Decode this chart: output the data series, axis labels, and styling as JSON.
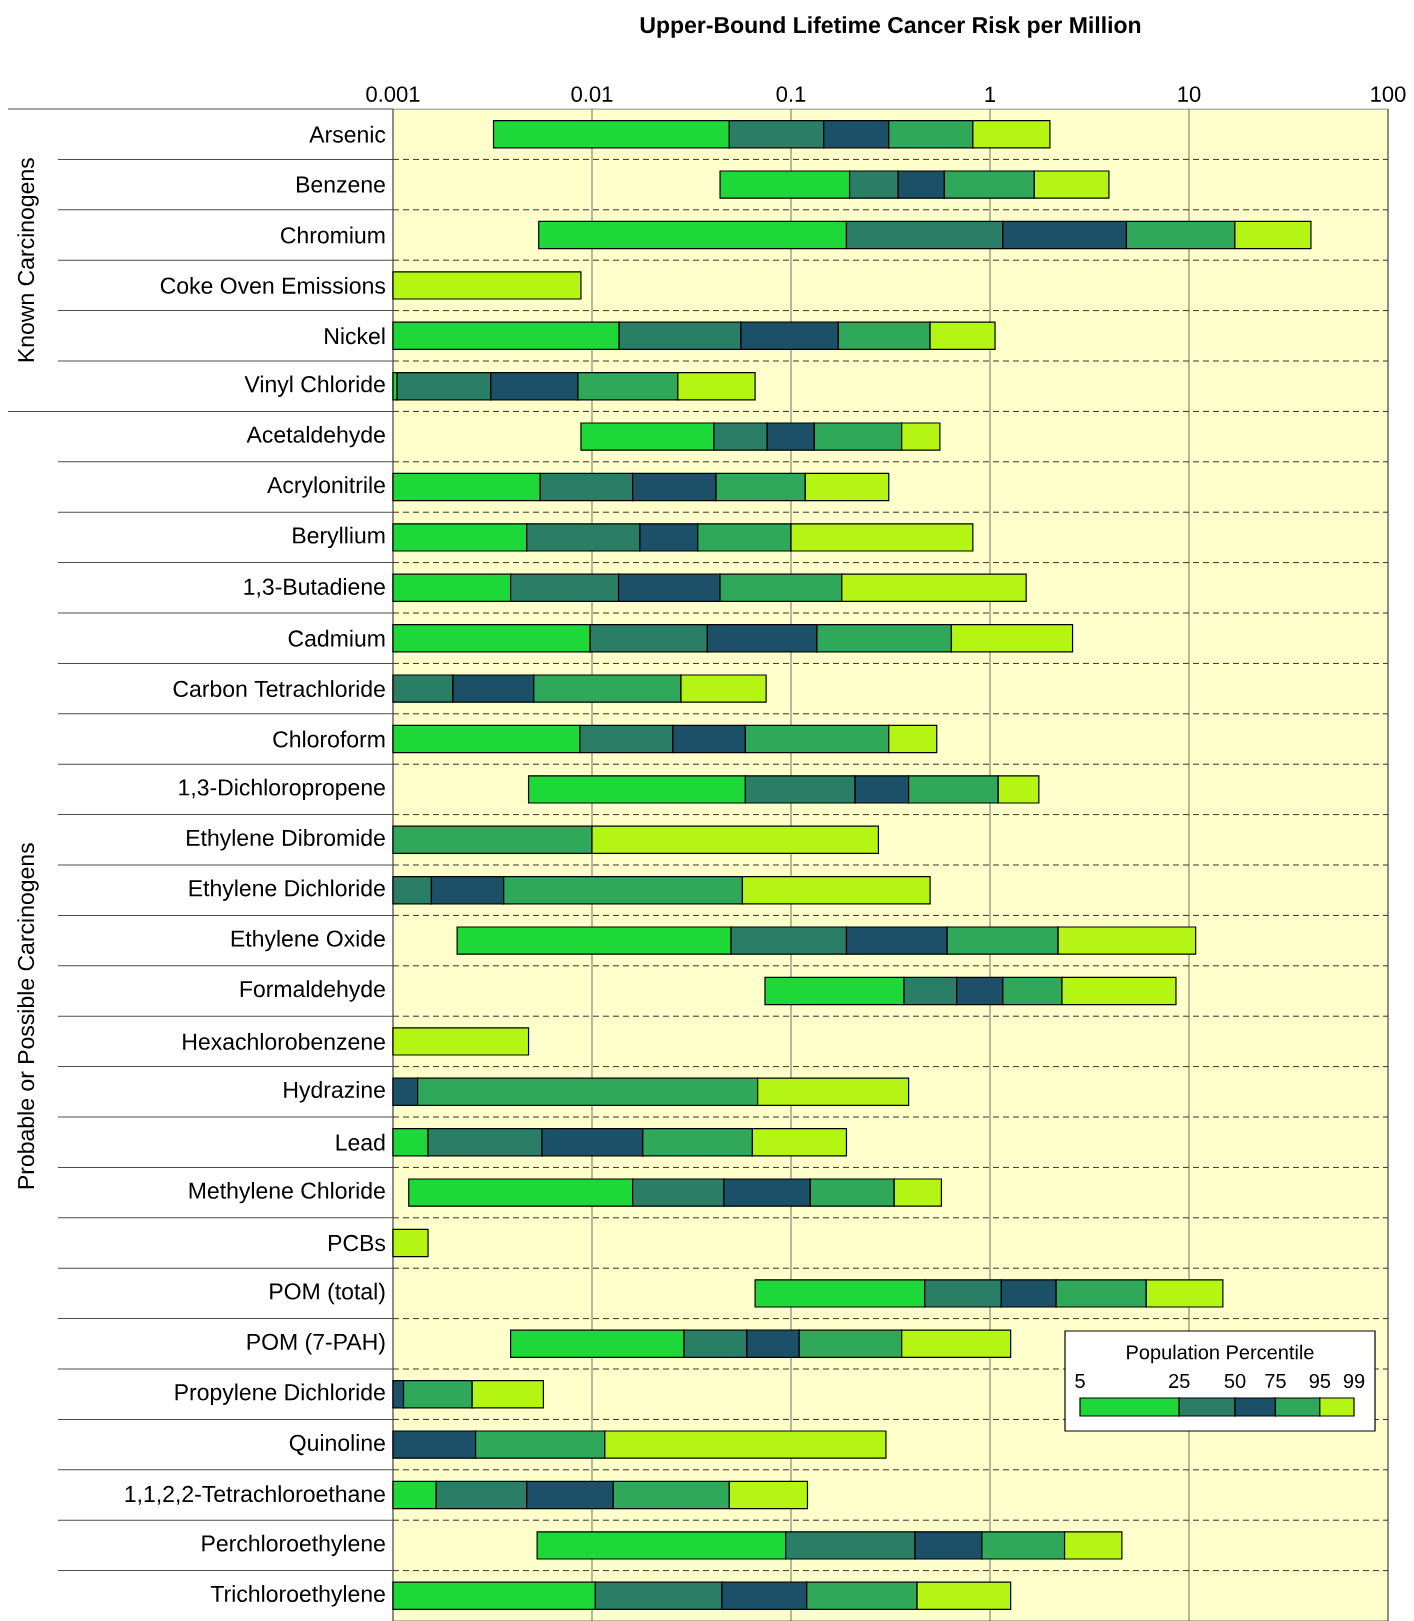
{
  "chart_data": {
    "type": "bar",
    "orientation": "horizontal",
    "log": "x",
    "xlabel": "Upper-Bound Lifetime Cancer Risk per Million",
    "legend_title": "Population Percentile",
    "annotations": [
      "Known Carcinogens",
      "Probable or Possible Carcinogens",
      "5",
      "25",
      "50",
      "75",
      "95",
      "99"
    ],
    "categories": [
      "Arsenic",
      "Benzene",
      "Chromium",
      "Coke Oven Emissions",
      "Nickel",
      "Vinyl Chloride",
      "Acetaldehyde",
      "Acrylonitrile",
      "Beryllium",
      "1,3-Butadiene",
      "Cadmium",
      "Carbon Tetrachloride",
      "Chloroform",
      "1,3-Dichloropropene",
      "Ethylene Dibromide",
      "Ethylene Dichloride",
      "Ethylene Oxide",
      "Formaldehyde",
      "Hexachlorobenzene",
      "Hydrazine",
      "Lead",
      "Methylene Chloride",
      "PCBs",
      "POM (total)",
      "POM (7-PAH)",
      "Propylene Dichloride",
      "Quinoline",
      "1,1,2,2-Tetrachloroethane",
      "Perchloroethylene",
      "Trichloroethylene"
    ],
    "series": [
      {
        "color": "#1ed83a",
        "base": [
          0.0032,
          0.044,
          0.0054,
          null,
          0.001,
          0.001,
          0.0088,
          0.001,
          0.001,
          0.001,
          0.001,
          null,
          0.001,
          0.0048,
          null,
          null,
          0.0021,
          0.074,
          null,
          null,
          0.001,
          0.0012,
          null,
          0.066,
          0.0039,
          null,
          null,
          0.001,
          0.0053,
          0.001
        ],
        "values": [
          0.0458,
          0.153,
          0.1846,
          null,
          0.0127,
          5e-05,
          0.0322,
          0.0045,
          0.0037,
          0.0029,
          0.0088,
          null,
          0.0077,
          0.0542,
          null,
          null,
          0.0479,
          0.296,
          null,
          null,
          0.0005,
          0.0148,
          null,
          0.404,
          0.0251,
          null,
          null,
          0.00065,
          0.0887,
          0.0094
        ]
      },
      {
        "color": "#2a7e66",
        "base": [
          0.049,
          0.197,
          0.19,
          null,
          0.0137,
          0.00105,
          0.041,
          0.0055,
          0.0047,
          0.0039,
          0.0098,
          0.001,
          0.0087,
          0.059,
          null,
          0.001,
          0.05,
          0.37,
          null,
          null,
          0.0015,
          0.016,
          null,
          0.47,
          0.029,
          null,
          null,
          0.00165,
          0.094,
          0.0104
        ],
        "values": [
          0.097,
          0.149,
          0.97,
          null,
          0.0423,
          0.00205,
          0.035,
          0.0105,
          0.0127,
          0.0097,
          0.0282,
          0.001,
          0.0168,
          0.151,
          null,
          0.00056,
          0.14,
          0.31,
          null,
          null,
          0.0041,
          0.03,
          null,
          0.67,
          0.031,
          null,
          null,
          0.00305,
          0.326,
          0.0346
        ]
      },
      {
        "color": "#1b5068",
        "base": [
          0.146,
          0.346,
          1.16,
          null,
          0.056,
          0.0031,
          0.076,
          0.016,
          0.0174,
          0.0136,
          0.038,
          0.002,
          0.0255,
          0.21,
          null,
          0.00156,
          0.19,
          0.68,
          null,
          0.001,
          0.0056,
          0.046,
          null,
          1.14,
          0.06,
          0.001,
          0.001,
          0.0047,
          0.42,
          0.045
        ],
        "values": [
          0.164,
          0.244,
          3.69,
          null,
          0.117,
          0.0054,
          0.055,
          0.026,
          0.0166,
          0.0304,
          0.097,
          0.0031,
          0.0335,
          0.18,
          null,
          0.00204,
          0.42,
          0.48,
          null,
          0.00033,
          0.0124,
          0.079,
          null,
          1.01,
          0.05,
          0.00013,
          0.0016,
          0.0081,
          0.49,
          0.075
        ]
      },
      {
        "color": "#2fa85a",
        "base": [
          0.31,
          0.59,
          4.85,
          null,
          0.173,
          0.0085,
          0.131,
          0.042,
          0.034,
          0.044,
          0.135,
          0.0051,
          0.059,
          0.39,
          0.001,
          0.0036,
          0.61,
          1.16,
          null,
          0.00133,
          0.018,
          0.125,
          null,
          2.15,
          0.11,
          0.00113,
          0.0026,
          0.0128,
          0.91,
          0.12
        ],
        "values": [
          0.51,
          1.08,
          12.15,
          null,
          0.327,
          0.0185,
          0.229,
          0.076,
          0.066,
          0.136,
          0.505,
          0.0229,
          0.251,
          0.71,
          0.009,
          0.0534,
          1.59,
          1.14,
          null,
          0.0667,
          0.046,
          0.205,
          null,
          3.95,
          0.25,
          0.00137,
          0.009,
          0.0362,
          1.46,
          0.31
        ]
      },
      {
        "color": "#b4f514",
        "base": [
          0.82,
          1.67,
          17,
          0.001,
          0.5,
          0.027,
          0.36,
          0.118,
          0.1,
          0.18,
          0.64,
          0.028,
          0.31,
          1.1,
          0.01,
          0.057,
          2.2,
          2.3,
          0.001,
          0.068,
          0.064,
          0.33,
          0.001,
          6.1,
          0.36,
          0.0025,
          0.0116,
          0.049,
          2.37,
          0.43
        ],
        "values": [
          1.18,
          2.29,
          24,
          0.0078,
          0.56,
          0.039,
          0.2,
          0.192,
          0.72,
          1.34,
          1.96,
          0.047,
          0.23,
          0.66,
          0.265,
          0.443,
          8.6,
          6.3,
          0.0038,
          0.322,
          0.126,
          0.24,
          0.0005,
          8.7,
          0.91,
          0.0032,
          0.2884,
          0.072,
          2.23,
          0.84
        ]
      }
    ],
    "xlim": [
      0.001,
      100
    ],
    "xticks": [
      0.001,
      0.01,
      0.1,
      1,
      10,
      100
    ],
    "grid": true
  }
}
